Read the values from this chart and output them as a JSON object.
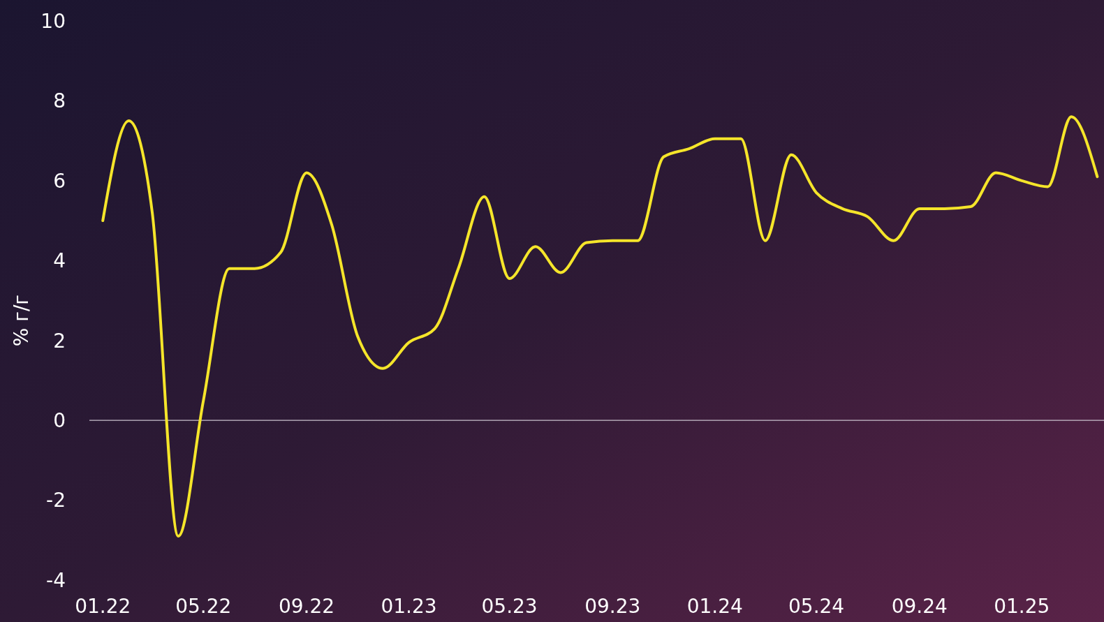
{
  "chart_data": {
    "type": "line",
    "ylabel": "% г/г",
    "x": [
      "2022-01",
      "2022-02",
      "2022-03",
      "2022-04",
      "2022-05",
      "2022-06",
      "2022-07",
      "2022-08",
      "2022-09",
      "2022-10",
      "2022-11",
      "2022-12",
      "2023-01",
      "2023-02",
      "2023-03",
      "2023-04",
      "2023-05",
      "2023-06",
      "2023-07",
      "2023-08",
      "2023-09",
      "2023-10",
      "2023-11",
      "2023-12",
      "2024-01",
      "2024-02",
      "2024-03",
      "2024-04",
      "2024-05",
      "2024-06",
      "2024-07",
      "2024-08",
      "2024-09",
      "2024-10",
      "2024-11",
      "2024-12",
      "2025-01",
      "2025-02",
      "2025-03",
      "2025-04"
    ],
    "series": [
      {
        "color": "#f5e52a",
        "values": [
          5.0,
          7.5,
          5.2,
          -2.9,
          0.5,
          3.8,
          3.8,
          4.2,
          6.2,
          4.9,
          2.1,
          1.3,
          1.95,
          2.3,
          3.8,
          5.6,
          3.55,
          4.35,
          3.7,
          4.45,
          4.5,
          4.5,
          6.6,
          6.8,
          7.05,
          7.05,
          4.5,
          6.65,
          5.7,
          5.3,
          5.1,
          4.5,
          5.3,
          5.3,
          5.35,
          6.2,
          6.0,
          5.85,
          7.6,
          6.1
        ]
      }
    ],
    "xlim": [
      "2021-12-16",
      "2025-04-09"
    ],
    "xticks": [
      {
        "value": "2022-01",
        "label": "01.22"
      },
      {
        "value": "2022-05",
        "label": "05.22"
      },
      {
        "value": "2022-09",
        "label": "09.22"
      },
      {
        "value": "2023-01",
        "label": "01.23"
      },
      {
        "value": "2023-05",
        "label": "05.23"
      },
      {
        "value": "2023-09",
        "label": "09.23"
      },
      {
        "value": "2024-01",
        "label": "01.24"
      },
      {
        "value": "2024-05",
        "label": "05.24"
      },
      {
        "value": "2024-09",
        "label": "09.24"
      },
      {
        "value": "2025-01",
        "label": "01.25"
      }
    ],
    "ylim": [
      -4,
      10
    ],
    "yticks": [
      -4,
      -2,
      0,
      2,
      4,
      6,
      8,
      10
    ],
    "ref_lines": [
      {
        "axis": "y",
        "value": 0,
        "color": "#c8c0cc"
      }
    ],
    "grid": false,
    "marker": "none",
    "line_style": "solid"
  }
}
